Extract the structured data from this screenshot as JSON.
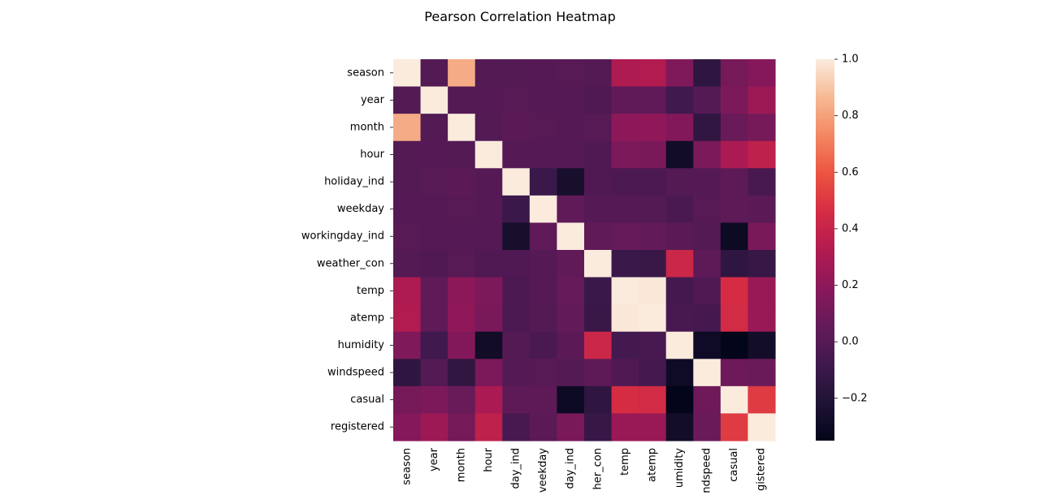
{
  "chart_data": {
    "type": "heatmap",
    "title": "Pearson Correlation Heatmap",
    "xlabel": "",
    "ylabel": "",
    "rows": [
      "season",
      "year",
      "month",
      "hour",
      "holiday_ind",
      "weekday",
      "workingday_ind",
      "weather_con",
      "temp",
      "atemp",
      "humidity",
      "windspeed",
      "casual",
      "registered"
    ],
    "columns": [
      "season",
      "year",
      "month",
      "hour",
      "holiday_ind",
      "weekday",
      "workingday_ind",
      "weather_con",
      "temp",
      "atemp",
      "humidity",
      "windspeed",
      "casual",
      "registered"
    ],
    "column_tick_labels": [
      "season",
      "year",
      "month",
      "hour",
      "day_ind",
      "veekday",
      "day_ind",
      "her_con",
      "temp",
      "atemp",
      "umidity",
      "ndspeed",
      "casual",
      "gistered"
    ],
    "values": [
      [
        1.0,
        -0.01,
        0.83,
        -0.01,
        -0.01,
        0.0,
        0.01,
        -0.01,
        0.31,
        0.32,
        0.15,
        -0.15,
        0.12,
        0.17
      ],
      [
        -0.01,
        1.0,
        -0.01,
        -0.0,
        0.01,
        -0.0,
        -0.0,
        -0.02,
        0.04,
        0.04,
        -0.08,
        -0.01,
        0.14,
        0.25
      ],
      [
        0.83,
        -0.01,
        1.0,
        -0.01,
        0.02,
        0.01,
        -0.0,
        0.01,
        0.2,
        0.21,
        0.16,
        -0.14,
        0.07,
        0.12
      ],
      [
        -0.01,
        -0.0,
        -0.01,
        1.0,
        0.0,
        -0.0,
        0.0,
        -0.02,
        0.14,
        0.13,
        -0.28,
        0.14,
        0.3,
        0.37
      ],
      [
        -0.01,
        0.01,
        0.02,
        0.0,
        1.0,
        -0.1,
        -0.25,
        -0.02,
        -0.03,
        -0.03,
        -0.01,
        0.0,
        0.03,
        -0.05
      ],
      [
        0.0,
        -0.0,
        0.01,
        -0.0,
        -0.1,
        1.0,
        0.04,
        0.0,
        -0.0,
        -0.01,
        -0.04,
        0.01,
        0.03,
        0.02
      ],
      [
        0.01,
        -0.0,
        -0.0,
        0.0,
        -0.25,
        0.04,
        1.0,
        0.04,
        0.06,
        0.05,
        0.02,
        -0.01,
        -0.3,
        0.13
      ],
      [
        -0.01,
        -0.02,
        0.01,
        -0.02,
        -0.02,
        0.0,
        0.04,
        1.0,
        -0.1,
        -0.11,
        0.42,
        0.03,
        -0.15,
        -0.12
      ],
      [
        0.31,
        0.04,
        0.2,
        0.14,
        -0.03,
        -0.0,
        0.06,
        -0.1,
        1.0,
        0.99,
        -0.07,
        -0.02,
        0.46,
        0.24
      ],
      [
        0.32,
        0.04,
        0.21,
        0.13,
        -0.03,
        -0.01,
        0.05,
        -0.11,
        0.99,
        1.0,
        -0.05,
        -0.06,
        0.45,
        0.24
      ],
      [
        0.15,
        -0.08,
        0.16,
        -0.28,
        -0.01,
        -0.04,
        0.02,
        0.42,
        -0.07,
        -0.05,
        1.0,
        -0.29,
        -0.35,
        -0.27
      ],
      [
        -0.15,
        -0.01,
        -0.14,
        0.14,
        0.0,
        0.01,
        -0.01,
        0.03,
        -0.02,
        -0.06,
        -0.29,
        1.0,
        0.09,
        0.08
      ],
      [
        0.12,
        0.14,
        0.07,
        0.3,
        0.03,
        0.03,
        -0.3,
        -0.15,
        0.46,
        0.45,
        -0.35,
        0.09,
        1.0,
        0.51
      ],
      [
        0.17,
        0.25,
        0.12,
        0.37,
        -0.05,
        0.02,
        0.13,
        -0.12,
        0.24,
        0.24,
        -0.27,
        0.08,
        0.51,
        1.0
      ]
    ],
    "vmin": -0.35,
    "vmax": 1.0,
    "colormap": "rocket",
    "colorbar": {
      "ticks": [
        -0.2,
        0.0,
        0.2,
        0.4,
        0.6,
        0.8,
        1.0
      ],
      "tick_labels": [
        "−0.2",
        "0.0",
        "0.2",
        "0.4",
        "0.6",
        "0.8",
        "1.0"
      ],
      "placement": "right"
    },
    "grid": false
  }
}
